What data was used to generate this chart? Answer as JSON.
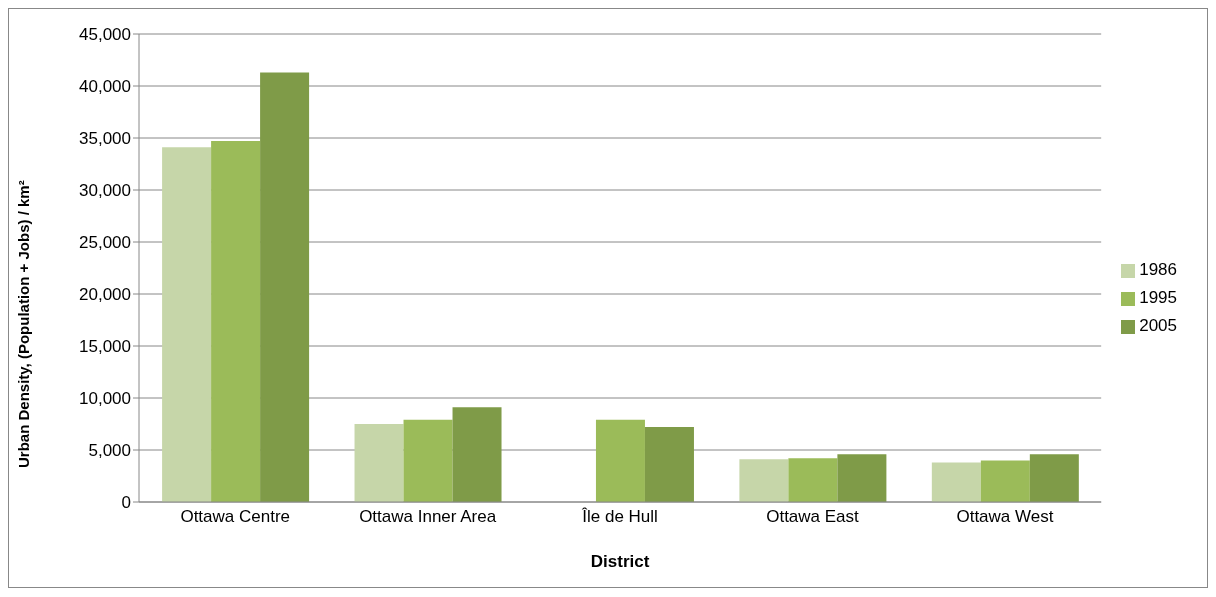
{
  "chart_data": {
    "type": "bar",
    "xlabel": "District",
    "ylabel": "Urban Density, (Population + Jobs) / km²",
    "categories": [
      "Ottawa Centre",
      "Ottawa Inner  Area",
      "Île de Hull",
      "Ottawa East",
      "Ottawa West"
    ],
    "series": [
      {
        "name": "1986",
        "color": "#c6d6a9",
        "values": [
          34100,
          7500,
          null,
          4100,
          3800
        ]
      },
      {
        "name": "1995",
        "color": "#9bbb59",
        "values": [
          34700,
          7900,
          7900,
          4200,
          4000
        ]
      },
      {
        "name": "2005",
        "color": "#7f9b48",
        "values": [
          41300,
          9100,
          7200,
          4600,
          4600
        ]
      }
    ],
    "ylim": [
      0,
      45000
    ],
    "yticks": [
      0,
      {
        "value": 5000,
        "label": "5,000"
      },
      {
        "value": 10000,
        "label": "10,000"
      },
      {
        "value": 15000,
        "label": "15,000"
      },
      {
        "value": 20000,
        "label": "20,000"
      },
      {
        "value": 25000,
        "label": "25,000"
      },
      {
        "value": 30000,
        "label": "30,000"
      },
      {
        "value": 35000,
        "label": "35,000"
      },
      {
        "value": 40000,
        "label": "40,000"
      },
      {
        "value": 45000,
        "label": "45,000"
      }
    ],
    "grid": "y",
    "legend": "right"
  }
}
